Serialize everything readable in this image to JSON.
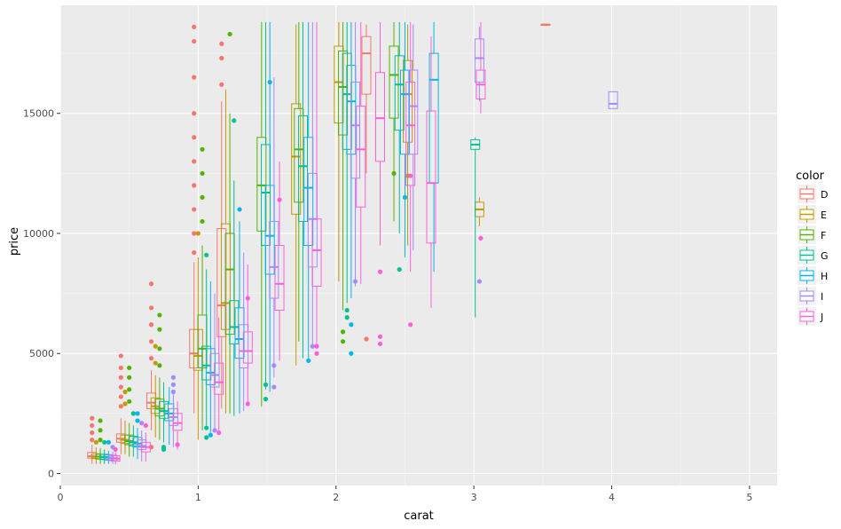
{
  "chart_data": {
    "type": "boxplot",
    "title": "",
    "xlabel": "carat",
    "ylabel": "price",
    "xlim": [
      0,
      5.2
    ],
    "ylim": [
      -500,
      19500
    ],
    "x_ticks": [
      0,
      1,
      2,
      3,
      4,
      5
    ],
    "y_ticks": [
      0,
      5000,
      10000,
      15000
    ],
    "x_tick_labels": [
      "0",
      "1",
      "2",
      "3",
      "4",
      "5"
    ],
    "y_tick_labels": [
      "0",
      "5000",
      "10000",
      "15000"
    ],
    "grid": true,
    "legend": {
      "title": "color",
      "position": "right"
    },
    "colors": {
      "D": "#F8766D",
      "E": "#C49A00",
      "F": "#53B400",
      "G": "#00C094",
      "H": "#00B6EB",
      "I": "#A58AFF",
      "J": "#FB61D7"
    },
    "series": [
      {
        "name": "D",
        "boxes": [
          {
            "x": 0.23,
            "q1": 640,
            "median": 720,
            "q3": 880,
            "lo": 400,
            "hi": 1200,
            "outliers": [
              1400,
              1700,
              2000,
              2300
            ]
          },
          {
            "x": 0.44,
            "q1": 1300,
            "median": 1450,
            "q3": 1650,
            "lo": 800,
            "hi": 2300,
            "outliers": [
              2800,
              3200,
              3600,
              4000,
              4400,
              4900
            ]
          },
          {
            "x": 0.66,
            "q1": 2700,
            "median": 2950,
            "q3": 3350,
            "lo": 1800,
            "hi": 4300,
            "outliers": [
              4800,
              5500,
              6200,
              6900,
              7900,
              1100
            ]
          },
          {
            "x": 0.97,
            "q1": 4400,
            "median": 5000,
            "q3": 6000,
            "lo": 2500,
            "hi": 8800,
            "outliers": [
              9200,
              10000,
              11000,
              12000,
              13000,
              14000,
              15000,
              16500,
              18000,
              18600
            ]
          },
          {
            "x": 1.17,
            "q1": 5700,
            "median": 7000,
            "q3": 10200,
            "lo": 2700,
            "hi": 15500,
            "outliers": [
              16200,
              17300,
              17900
            ]
          },
          {
            "x": 2.22,
            "q1": 15800,
            "median": 17500,
            "q3": 18200,
            "lo": 12500,
            "hi": 18700,
            "outliers": [
              5600
            ]
          },
          {
            "x": 3.52,
            "q1": 18700,
            "median": 18701,
            "q3": 18702,
            "lo": 18700,
            "hi": 18702,
            "outliers": []
          }
        ]
      },
      {
        "name": "E",
        "boxes": [
          {
            "x": 0.26,
            "q1": 620,
            "median": 700,
            "q3": 820,
            "lo": 400,
            "hi": 1100,
            "outliers": [
              1300
            ]
          },
          {
            "x": 0.47,
            "q1": 1250,
            "median": 1400,
            "q3": 1600,
            "lo": 800,
            "hi": 2200,
            "outliers": [
              2900,
              3400
            ]
          },
          {
            "x": 0.69,
            "q1": 2500,
            "median": 2800,
            "q3": 3150,
            "lo": 1500,
            "hi": 4100,
            "outliers": [
              4600,
              5300
            ]
          },
          {
            "x": 1.0,
            "q1": 4300,
            "median": 4900,
            "q3": 6000,
            "lo": 1400,
            "hi": 9000,
            "outliers": [
              10000
            ]
          },
          {
            "x": 1.2,
            "q1": 6000,
            "median": 7100,
            "q3": 10400,
            "lo": 2500,
            "hi": 16000,
            "outliers": []
          },
          {
            "x": 1.71,
            "q1": 10800,
            "median": 13200,
            "q3": 15400,
            "lo": 4500,
            "hi": 18700,
            "outliers": []
          },
          {
            "x": 2.02,
            "q1": 14600,
            "median": 16300,
            "q3": 17800,
            "lo": 8000,
            "hi": 18800,
            "outliers": []
          },
          {
            "x": 2.52,
            "q1": 13800,
            "median": 15800,
            "q3": 17200,
            "lo": 9500,
            "hi": 18700,
            "outliers": [
              12400
            ]
          },
          {
            "x": 3.04,
            "q1": 10700,
            "median": 11000,
            "q3": 11300,
            "lo": 10300,
            "hi": 11500,
            "outliers": []
          }
        ]
      },
      {
        "name": "F",
        "boxes": [
          {
            "x": 0.29,
            "q1": 600,
            "median": 700,
            "q3": 800,
            "lo": 400,
            "hi": 1050,
            "outliers": [
              1400,
              1800,
              2200
            ]
          },
          {
            "x": 0.5,
            "q1": 1200,
            "median": 1350,
            "q3": 1600,
            "lo": 700,
            "hi": 2100,
            "outliers": [
              3000,
              3500,
              4000,
              4400
            ]
          },
          {
            "x": 0.72,
            "q1": 2400,
            "median": 2700,
            "q3": 3100,
            "lo": 1400,
            "hi": 4000,
            "outliers": [
              4500,
              5200,
              6000,
              6600
            ]
          },
          {
            "x": 1.03,
            "q1": 4400,
            "median": 5200,
            "q3": 6600,
            "lo": 1800,
            "hi": 9500,
            "outliers": [
              10500,
              11500,
              12500,
              13500
            ]
          },
          {
            "x": 1.23,
            "q1": 5800,
            "median": 8500,
            "q3": 10000,
            "lo": 2500,
            "hi": 15000,
            "outliers": [
              18300
            ]
          },
          {
            "x": 1.46,
            "q1": 10100,
            "median": 12000,
            "q3": 14000,
            "lo": 2800,
            "hi": 18800,
            "outliers": []
          },
          {
            "x": 1.73,
            "q1": 11300,
            "median": 13500,
            "q3": 15200,
            "lo": 5500,
            "hi": 18800,
            "outliers": []
          },
          {
            "x": 2.05,
            "q1": 14100,
            "median": 16100,
            "q3": 17600,
            "lo": 6800,
            "hi": 18800,
            "outliers": [
              5500,
              5900
            ]
          },
          {
            "x": 2.42,
            "q1": 14800,
            "median": 16600,
            "q3": 17800,
            "lo": 10500,
            "hi": 18800,
            "outliers": [
              12500
            ]
          }
        ]
      },
      {
        "name": "G",
        "boxes": [
          {
            "x": 0.32,
            "q1": 580,
            "median": 680,
            "q3": 800,
            "lo": 400,
            "hi": 1000,
            "outliers": [
              1300
            ]
          },
          {
            "x": 0.53,
            "q1": 1150,
            "median": 1300,
            "q3": 1550,
            "lo": 700,
            "hi": 2000,
            "outliers": [
              2500
            ]
          },
          {
            "x": 0.75,
            "q1": 2300,
            "median": 2600,
            "q3": 3000,
            "lo": 1300,
            "hi": 3800,
            "outliers": [
              1100,
              1000
            ]
          },
          {
            "x": 1.06,
            "q1": 3900,
            "median": 4500,
            "q3": 5300,
            "lo": 2000,
            "hi": 8500,
            "outliers": [
              1500,
              1900,
              9100
            ]
          },
          {
            "x": 1.26,
            "q1": 5400,
            "median": 6100,
            "q3": 7200,
            "lo": 2400,
            "hi": 12200,
            "outliers": [
              14700
            ]
          },
          {
            "x": 1.49,
            "q1": 9500,
            "median": 11700,
            "q3": 13700,
            "lo": 3500,
            "hi": 18800,
            "outliers": [
              3100,
              3700
            ]
          },
          {
            "x": 1.76,
            "q1": 10500,
            "median": 12800,
            "q3": 14900,
            "lo": 4800,
            "hi": 18800,
            "outliers": []
          },
          {
            "x": 2.08,
            "q1": 13500,
            "median": 15800,
            "q3": 17500,
            "lo": 7100,
            "hi": 18800,
            "outliers": [
              6500,
              6800
            ]
          },
          {
            "x": 2.46,
            "q1": 14300,
            "median": 16200,
            "q3": 17400,
            "lo": 10000,
            "hi": 18800,
            "outliers": [
              8500
            ]
          },
          {
            "x": 3.01,
            "q1": 13500,
            "median": 13700,
            "q3": 13900,
            "lo": 6500,
            "hi": 14000,
            "outliers": []
          }
        ]
      },
      {
        "name": "H",
        "boxes": [
          {
            "x": 0.35,
            "q1": 560,
            "median": 660,
            "q3": 780,
            "lo": 400,
            "hi": 950,
            "outliers": [
              1300
            ]
          },
          {
            "x": 0.56,
            "q1": 1100,
            "median": 1250,
            "q3": 1500,
            "lo": 600,
            "hi": 1900,
            "outliers": [
              2200,
              2500
            ]
          },
          {
            "x": 0.79,
            "q1": 2200,
            "median": 2500,
            "q3": 2900,
            "lo": 1200,
            "hi": 3600,
            "outliers": []
          },
          {
            "x": 1.09,
            "q1": 3700,
            "median": 4200,
            "q3": 5200,
            "lo": 1700,
            "hi": 8000,
            "outliers": [
              1600
            ]
          },
          {
            "x": 1.3,
            "q1": 4800,
            "median": 5600,
            "q3": 6900,
            "lo": 2500,
            "hi": 10500,
            "outliers": [
              11000
            ]
          },
          {
            "x": 1.52,
            "q1": 8300,
            "median": 9900,
            "q3": 12000,
            "lo": 3400,
            "hi": 18800,
            "outliers": [
              16300
            ]
          },
          {
            "x": 1.8,
            "q1": 9500,
            "median": 11900,
            "q3": 14000,
            "lo": 4600,
            "hi": 18800,
            "outliers": [
              4700
            ]
          },
          {
            "x": 2.11,
            "q1": 13300,
            "median": 15500,
            "q3": 17000,
            "lo": 7300,
            "hi": 18800,
            "outliers": [
              5000,
              6200
            ]
          },
          {
            "x": 2.5,
            "q1": 13300,
            "median": 15800,
            "q3": 16800,
            "lo": 9000,
            "hi": 18800,
            "outliers": [
              11500
            ]
          },
          {
            "x": 2.71,
            "q1": 12100,
            "median": 16400,
            "q3": 17500,
            "lo": 8400,
            "hi": 18800,
            "outliers": []
          }
        ]
      },
      {
        "name": "I",
        "boxes": [
          {
            "x": 0.38,
            "q1": 540,
            "median": 640,
            "q3": 760,
            "lo": 400,
            "hi": 900,
            "outliers": [
              1100
            ]
          },
          {
            "x": 0.59,
            "q1": 1000,
            "median": 1150,
            "q3": 1400,
            "lo": 500,
            "hi": 1800,
            "outliers": [
              2100
            ]
          },
          {
            "x": 0.82,
            "q1": 2000,
            "median": 2350,
            "q3": 2700,
            "lo": 1100,
            "hi": 3300,
            "outliers": [
              3400,
              3700,
              4000
            ]
          },
          {
            "x": 1.12,
            "q1": 3600,
            "median": 4100,
            "q3": 5000,
            "lo": 1700,
            "hi": 7500,
            "outliers": [
              1800
            ]
          },
          {
            "x": 1.33,
            "q1": 4400,
            "median": 5100,
            "q3": 6200,
            "lo": 2600,
            "hi": 9200,
            "outliers": []
          },
          {
            "x": 1.55,
            "q1": 7300,
            "median": 8600,
            "q3": 10500,
            "lo": 4000,
            "hi": 16500,
            "outliers": [
              4500,
              3600
            ]
          },
          {
            "x": 1.83,
            "q1": 8600,
            "median": 10600,
            "q3": 12500,
            "lo": 5200,
            "hi": 18800,
            "outliers": [
              5300
            ]
          },
          {
            "x": 2.14,
            "q1": 12300,
            "median": 14500,
            "q3": 16300,
            "lo": 7800,
            "hi": 18800,
            "outliers": [
              8000
            ]
          },
          {
            "x": 2.56,
            "q1": 13300,
            "median": 15300,
            "q3": 16800,
            "lo": 9300,
            "hi": 18700,
            "outliers": []
          },
          {
            "x": 3.04,
            "q1": 16300,
            "median": 17300,
            "q3": 18100,
            "lo": 15500,
            "hi": 18600,
            "outliers": [
              8000
            ]
          },
          {
            "x": 4.01,
            "q1": 15200,
            "median": 15400,
            "q3": 15900,
            "lo": 15200,
            "hi": 15900,
            "outliers": []
          }
        ]
      },
      {
        "name": "J",
        "boxes": [
          {
            "x": 0.4,
            "q1": 520,
            "median": 620,
            "q3": 740,
            "lo": 380,
            "hi": 880,
            "outliers": [
              1000
            ]
          },
          {
            "x": 0.62,
            "q1": 900,
            "median": 1100,
            "q3": 1300,
            "lo": 500,
            "hi": 1700,
            "outliers": [
              2000
            ]
          },
          {
            "x": 0.85,
            "q1": 1800,
            "median": 2100,
            "q3": 2500,
            "lo": 1000,
            "hi": 3000,
            "outliers": [
              1200
            ]
          },
          {
            "x": 1.15,
            "q1": 3300,
            "median": 3800,
            "q3": 4600,
            "lo": 1600,
            "hi": 6500,
            "outliers": [
              1700
            ]
          },
          {
            "x": 1.36,
            "q1": 4600,
            "median": 5100,
            "q3": 5900,
            "lo": 2900,
            "hi": 8700,
            "outliers": [
              2900,
              7300
            ]
          },
          {
            "x": 1.59,
            "q1": 6800,
            "median": 7900,
            "q3": 9500,
            "lo": 4700,
            "hi": 13000,
            "outliers": [
              11400
            ]
          },
          {
            "x": 1.86,
            "q1": 7800,
            "median": 9300,
            "q3": 10600,
            "lo": 5200,
            "hi": 18800,
            "outliers": [
              5000,
              5300
            ]
          },
          {
            "x": 2.18,
            "q1": 11100,
            "median": 13500,
            "q3": 15300,
            "lo": 7900,
            "hi": 18800,
            "outliers": []
          },
          {
            "x": 2.32,
            "q1": 13000,
            "median": 14800,
            "q3": 16700,
            "lo": 9500,
            "hi": 18800,
            "outliers": [
              5400,
              5700,
              8400
            ]
          },
          {
            "x": 2.54,
            "q1": 12000,
            "median": 14500,
            "q3": 16300,
            "lo": 8400,
            "hi": 18800,
            "outliers": [
              6200,
              12400
            ]
          },
          {
            "x": 2.69,
            "q1": 9600,
            "median": 12100,
            "q3": 15100,
            "lo": 6900,
            "hi": 18200,
            "outliers": []
          },
          {
            "x": 3.05,
            "q1": 15600,
            "median": 16200,
            "q3": 16800,
            "lo": 15000,
            "hi": 18800,
            "outliers": [
              9800
            ]
          }
        ]
      }
    ]
  }
}
